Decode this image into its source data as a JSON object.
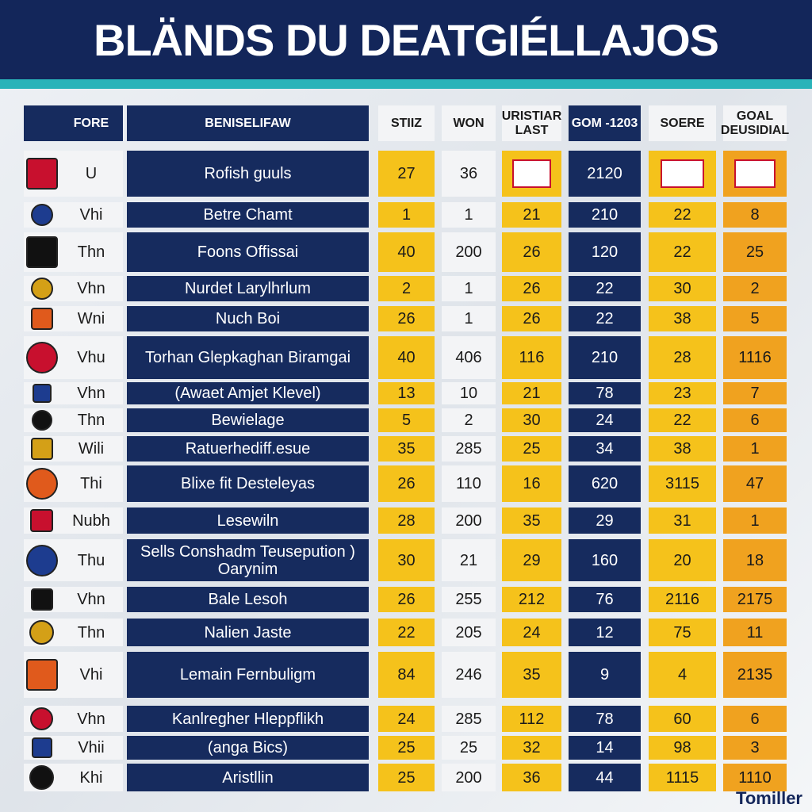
{
  "header": {
    "title": "BLÄNDS DU DEATGIÉLLAJOS"
  },
  "table": {
    "columns": [
      "FORE",
      "BENISELIFAW",
      "STIIZ",
      "WON",
      "URISTIAR LAST",
      "GOM -1203",
      "SOERE",
      "GOAL DEUSIDIAL"
    ],
    "rows": [
      {
        "form": "U",
        "team": "Rofish guuls",
        "stiz": 27,
        "won": 36,
        "gom": 2120
      },
      {
        "form": "Vhi",
        "team": "Betre Chamt",
        "stiz": 1,
        "won": 1,
        "last": 21,
        "gom": 210,
        "score": 22,
        "gd": 8
      },
      {
        "form": "Thn",
        "team": "Foons Offissai",
        "stiz": 40,
        "won": 200,
        "last": 26,
        "gom": 120,
        "score": 22,
        "gd": 25
      },
      {
        "form": "Vhn",
        "team": "Nurdet Larylhrlum",
        "stiz": 2,
        "won": 1,
        "last": 26,
        "gom": 22,
        "score": 30,
        "gd": 2
      },
      {
        "form": "Wni",
        "team": "Nuch Boi",
        "stiz": 26,
        "won": 1,
        "last": 26,
        "gom": 22,
        "score": 38,
        "gd": 5
      },
      {
        "form": "Vhu",
        "team": "Torhan Glepkaghan Biramgai",
        "stiz": 40,
        "won": 406,
        "last": 116,
        "gom": 210,
        "score": 28,
        "gd": 1116
      },
      {
        "form": "Vhn",
        "team": "(Awaet Amjet Klevel)",
        "stiz": 13,
        "won": 10,
        "last": 21,
        "gom": 78,
        "score": 23,
        "gd": 7
      },
      {
        "form": "Thn",
        "team": "Bewielage",
        "stiz": 5,
        "won": 2,
        "last": 30,
        "gom": 24,
        "score": 22,
        "gd": 6
      },
      {
        "form": "Wili",
        "team": "Ratuerhediff.esue",
        "stiz": 35,
        "won": 285,
        "last": 25,
        "gom": 34,
        "score": 38,
        "gd": 1
      },
      {
        "form": "Thi",
        "team": "Blixe fit Desteleyas",
        "stiz": 26,
        "won": 110,
        "last": 16,
        "gom": 620,
        "score": 3115,
        "gd": 47
      },
      {
        "form": "Nubh",
        "team": "Lesewiln",
        "stiz": 28,
        "won": 200,
        "last": 35,
        "gom": 29,
        "score": 31,
        "gd": 1
      },
      {
        "form": "Thu",
        "team": "Sells Conshadm Teusepution ) Oarynim",
        "stiz": 30,
        "won": 21,
        "last": 29,
        "gom": 160,
        "score": 20,
        "gd": 18
      },
      {
        "form": "Vhn",
        "team": "Bale Lesoh",
        "stiz": 26,
        "won": 255,
        "last": 212,
        "gom": 76,
        "score": 2116,
        "gd": 2175
      },
      {
        "form": "Thn",
        "team": "Nalien Jaste",
        "stiz": 22,
        "won": 205,
        "last": 24,
        "gom": 12,
        "score": 75,
        "gd": 11
      },
      {
        "form": "Vhi",
        "team": "Lemain Fernbuligm",
        "stiz": 84,
        "won": 246,
        "last": 35,
        "gom": 9,
        "score": 4,
        "gd": 2135
      },
      {
        "form": "Vhn",
        "team": "Kanlregher Hleppflikh",
        "stiz": 24,
        "won": 285,
        "last": 112,
        "gom": 78,
        "score": 60,
        "gd": 6
      },
      {
        "form": "Vhii",
        "team": "(anga Bics)",
        "stiz": 25,
        "won": 25,
        "last": 32,
        "gom": 14,
        "score": 98,
        "gd": 3
      },
      {
        "form": "Khi",
        "team": "Aristllin",
        "stiz": 25,
        "won": 200,
        "last": 36,
        "gom": 44,
        "score": 1115,
        "gd": 1110
      }
    ]
  },
  "footer": {
    "watermark": "Tomiller"
  }
}
